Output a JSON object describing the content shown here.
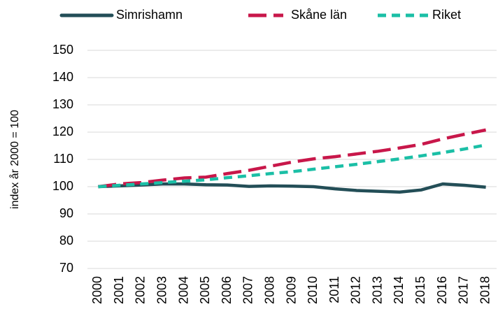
{
  "chart_data": {
    "type": "line",
    "y_label": "index år 2000 = 100",
    "categories": [
      "2000",
      "2001",
      "2002",
      "2003",
      "2004",
      "2005",
      "2006",
      "2007",
      "2008",
      "2009",
      "2010",
      "2011",
      "2012",
      "2013",
      "2014",
      "2015",
      "2016",
      "2017",
      "2018"
    ],
    "series": [
      {
        "name": "Simrishamn",
        "color": "#234e57",
        "dash": "solid",
        "values": [
          100,
          100.3,
          100.6,
          101,
          101,
          100.7,
          100.6,
          100.1,
          100.3,
          100.2,
          100,
          99.2,
          98.6,
          98.3,
          98,
          98.8,
          101,
          100.5,
          99.8
        ]
      },
      {
        "name": "Skåne län",
        "color": "#c8174a",
        "dash": "long",
        "values": [
          100,
          101,
          101.5,
          102.4,
          103.2,
          103.5,
          104.8,
          106,
          107.5,
          109,
          110.2,
          111,
          112,
          113,
          114.2,
          115.5,
          117.5,
          119.2,
          120.8
        ]
      },
      {
        "name": "Riket",
        "color": "#1bbfa6",
        "dash": "short",
        "values": [
          100,
          100.5,
          101,
          101.5,
          102,
          102.5,
          103.3,
          104,
          104.8,
          105.5,
          106.4,
          107.3,
          108.2,
          109.2,
          110.2,
          111.3,
          112.5,
          113.8,
          115.3
        ]
      }
    ],
    "ylim": [
      70,
      150
    ],
    "yticks": [
      70,
      80,
      90,
      100,
      110,
      120,
      130,
      140,
      150
    ],
    "grid": true,
    "legend": "top"
  }
}
